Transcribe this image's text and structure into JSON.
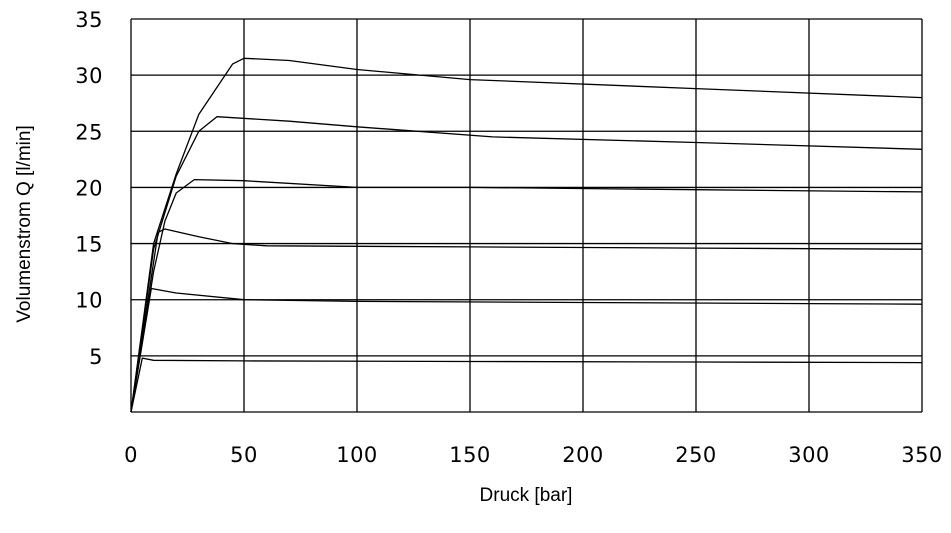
{
  "chart_data": {
    "type": "line",
    "title": "",
    "xlabel": "Druck [bar]",
    "ylabel": "Volumenstrom Q [l/min]",
    "xlim": [
      0,
      350
    ],
    "ylim": [
      0,
      35
    ],
    "x_ticks": [
      0,
      50,
      100,
      150,
      200,
      250,
      300,
      350
    ],
    "y_ticks": [
      5,
      10,
      15,
      20,
      25,
      30,
      35
    ],
    "grid": true,
    "legend": "none",
    "series": [
      {
        "points": [
          [
            0,
            0
          ],
          [
            5,
            4.8
          ],
          [
            10,
            4.6
          ],
          [
            50,
            4.55
          ],
          [
            150,
            4.5
          ],
          [
            250,
            4.45
          ],
          [
            350,
            4.4
          ]
        ]
      },
      {
        "points": [
          [
            0,
            0
          ],
          [
            9,
            11.0
          ],
          [
            20,
            10.6
          ],
          [
            50,
            10.0
          ],
          [
            100,
            9.85
          ],
          [
            200,
            9.75
          ],
          [
            300,
            9.65
          ],
          [
            350,
            9.6
          ]
        ]
      },
      {
        "points": [
          [
            0,
            0
          ],
          [
            12,
            16.0
          ],
          [
            15,
            16.3
          ],
          [
            30,
            15.6
          ],
          [
            45,
            15.0
          ],
          [
            60,
            14.8
          ],
          [
            150,
            14.7
          ],
          [
            250,
            14.6
          ],
          [
            350,
            14.5
          ]
        ]
      },
      {
        "points": [
          [
            0,
            0
          ],
          [
            10,
            12.5
          ],
          [
            15,
            17.0
          ],
          [
            20,
            19.5
          ],
          [
            28,
            20.7
          ],
          [
            50,
            20.6
          ],
          [
            100,
            20.0
          ],
          [
            150,
            20.0
          ],
          [
            250,
            19.8
          ],
          [
            350,
            19.6
          ]
        ]
      },
      {
        "points": [
          [
            0,
            0
          ],
          [
            10,
            14.5
          ],
          [
            20,
            21.0
          ],
          [
            30,
            25.0
          ],
          [
            38,
            26.3
          ],
          [
            70,
            25.9
          ],
          [
            100,
            25.4
          ],
          [
            160,
            24.5
          ],
          [
            250,
            24.0
          ],
          [
            350,
            23.4
          ]
        ]
      },
      {
        "points": [
          [
            0,
            0
          ],
          [
            10,
            15.0
          ],
          [
            20,
            21.2
          ],
          [
            30,
            26.5
          ],
          [
            45,
            31.0
          ],
          [
            50,
            31.5
          ],
          [
            70,
            31.3
          ],
          [
            100,
            30.5
          ],
          [
            150,
            29.6
          ],
          [
            250,
            28.8
          ],
          [
            350,
            28.0
          ]
        ]
      }
    ]
  }
}
